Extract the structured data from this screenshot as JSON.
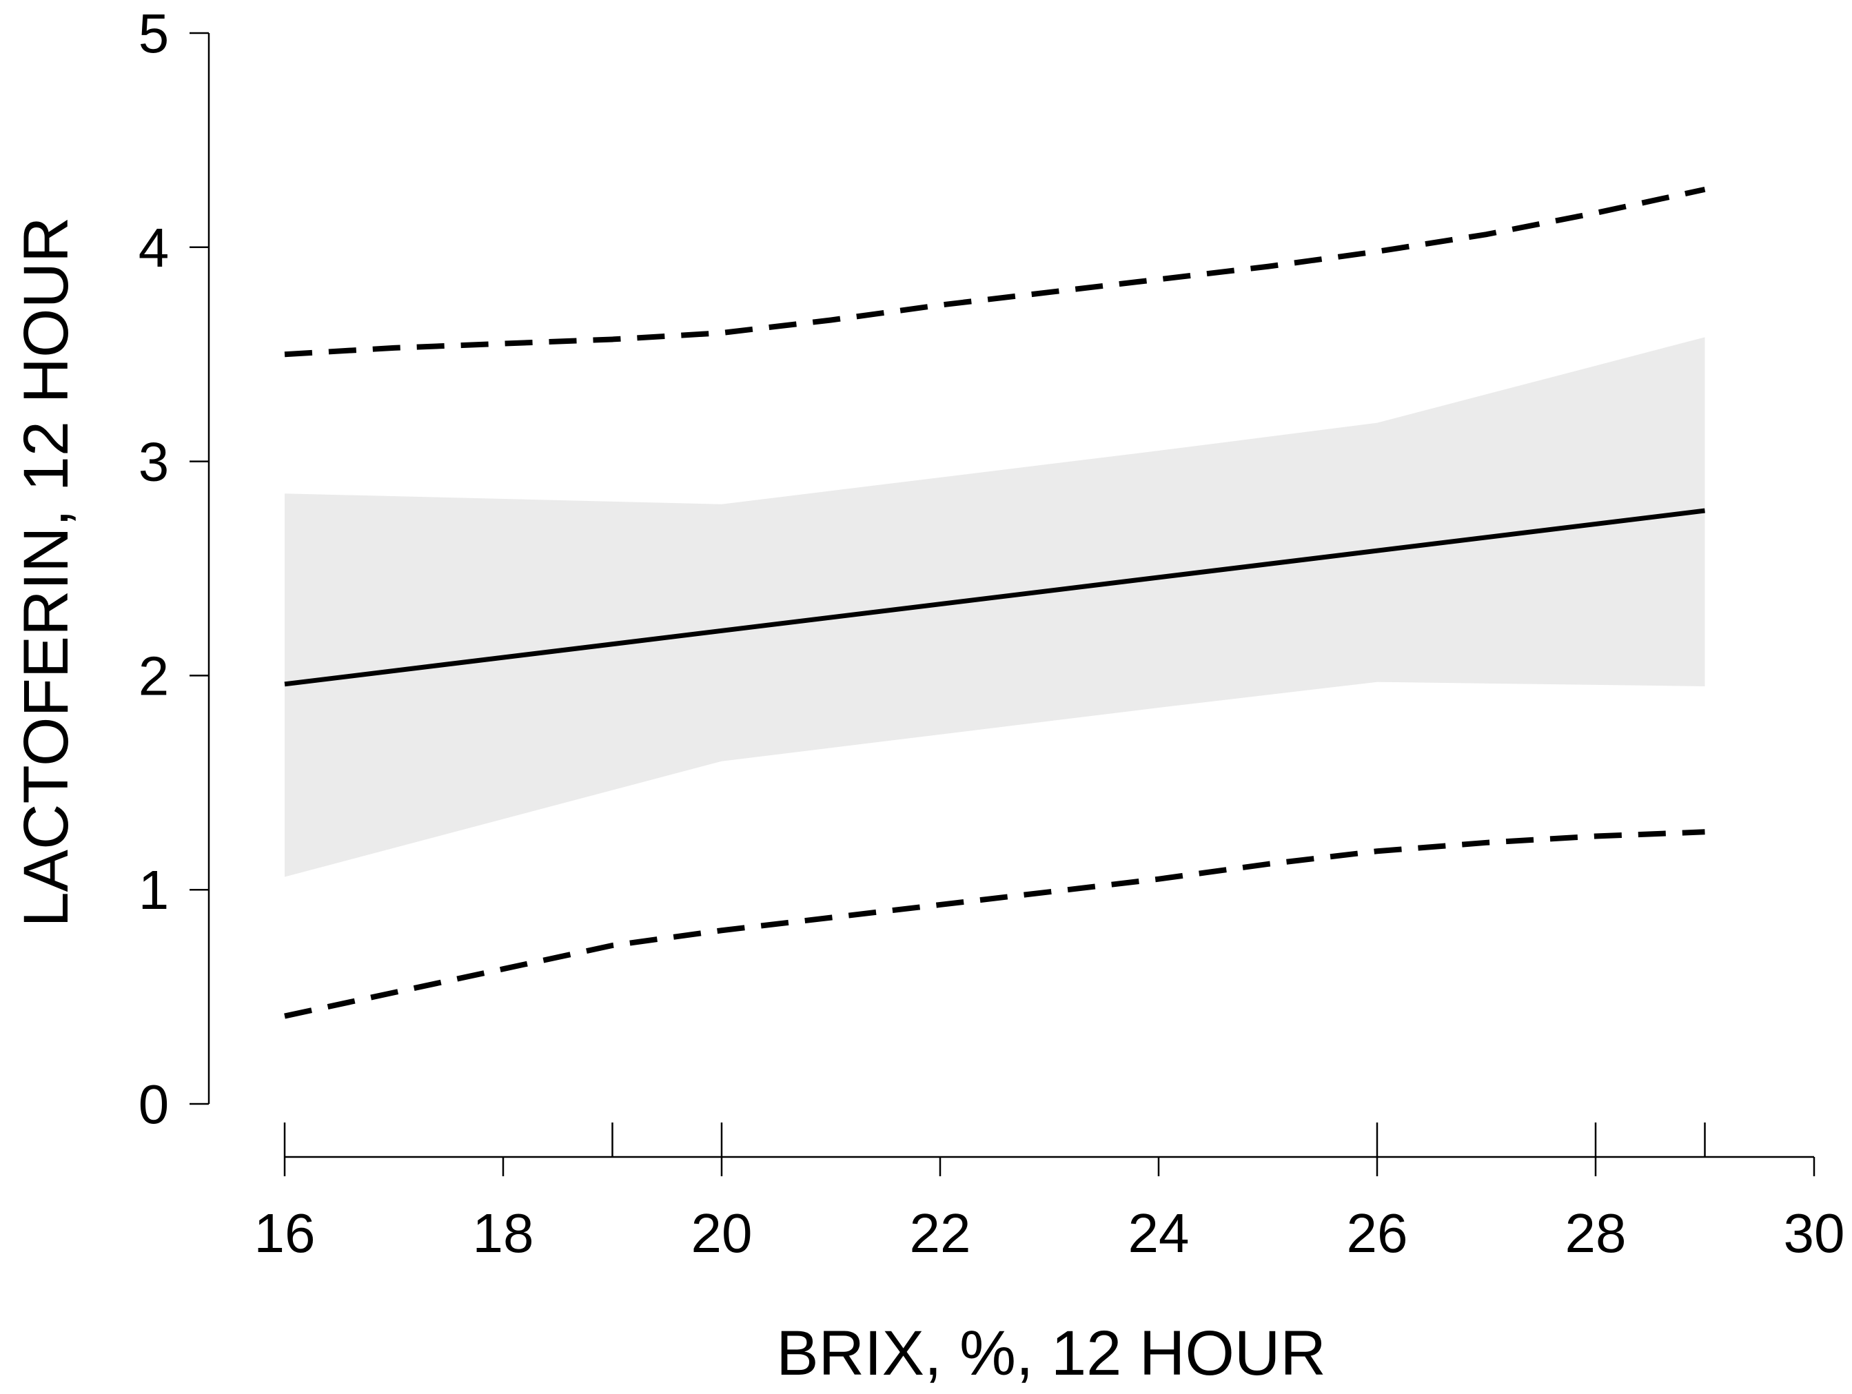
{
  "chart_data": {
    "type": "line",
    "title": "",
    "xlabel": "BRIX, %, 12 HOUR",
    "ylabel": "LACTOFERIN, 12 HOUR",
    "xlim": [
      16,
      30
    ],
    "ylim": [
      0,
      5
    ],
    "x_ticks": [
      16,
      18,
      20,
      22,
      24,
      26,
      28,
      30
    ],
    "y_ticks": [
      0,
      1,
      2,
      3,
      4,
      5
    ],
    "rug_marks": [
      16,
      19,
      20,
      26,
      28,
      29
    ],
    "grid": false,
    "legend": "none",
    "colors": {
      "fit_line": "#000000",
      "prediction_band": "#000000",
      "confidence_band": "#ebebeb"
    },
    "series": [
      {
        "role": "fit",
        "style": "solid",
        "x": [
          16,
          29
        ],
        "y": [
          1.96,
          2.77
        ]
      },
      {
        "role": "upper-prediction",
        "style": "dashed",
        "x": [
          16,
          17,
          18,
          19,
          20,
          21,
          22,
          23,
          24,
          25,
          26,
          27,
          28,
          29
        ],
        "y": [
          3.5,
          3.53,
          3.55,
          3.57,
          3.6,
          3.66,
          3.73,
          3.79,
          3.85,
          3.91,
          3.98,
          4.06,
          4.16,
          4.27
        ]
      },
      {
        "role": "lower-prediction",
        "style": "dashed",
        "x": [
          16,
          17,
          18,
          19,
          20,
          21,
          22,
          23,
          24,
          25,
          26,
          27,
          28,
          29
        ],
        "y": [
          0.41,
          0.52,
          0.63,
          0.74,
          0.81,
          0.87,
          0.93,
          0.99,
          1.05,
          1.12,
          1.18,
          1.22,
          1.25,
          1.27
        ]
      },
      {
        "role": "confidence-band",
        "style": "fill",
        "x": [
          16,
          20,
          24,
          26,
          29
        ],
        "upper": [
          2.85,
          2.8,
          3.05,
          3.18,
          3.58
        ],
        "lower": [
          1.06,
          1.6,
          1.85,
          1.97,
          1.95
        ]
      }
    ]
  }
}
